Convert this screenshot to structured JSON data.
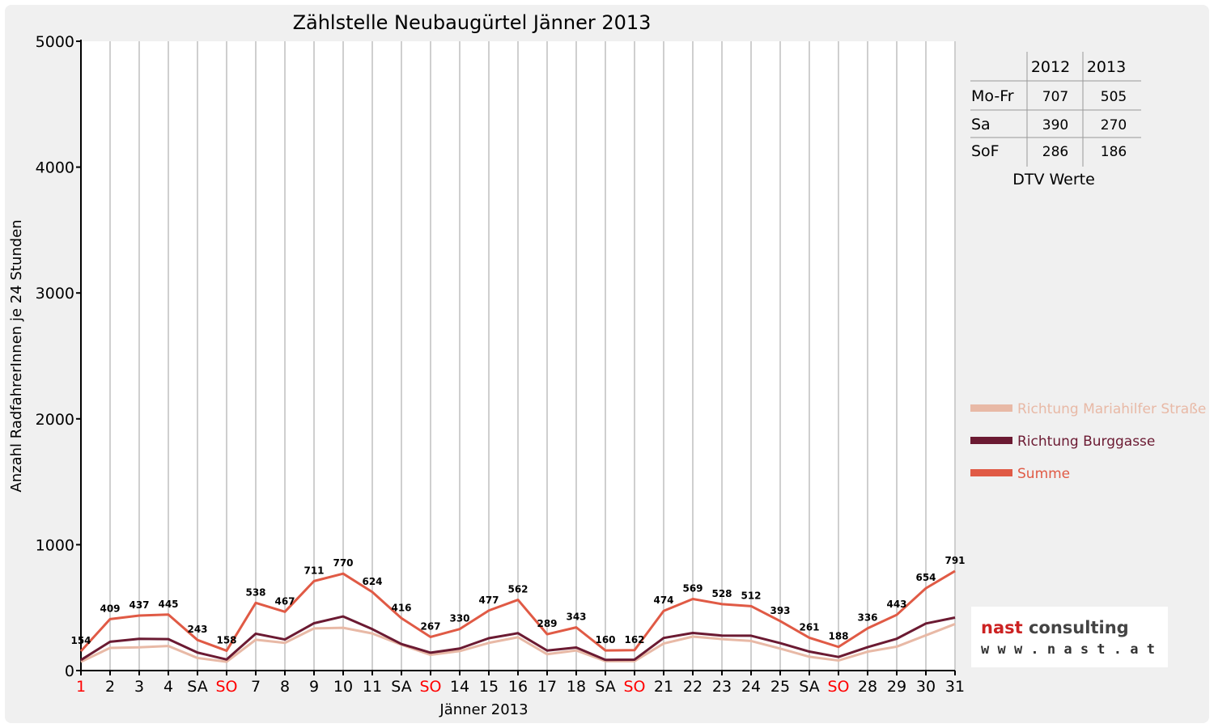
{
  "chart_data": {
    "type": "line",
    "title": "Zählstelle Neubaugürtel Jänner 2013",
    "xlabel": "Jänner 2013",
    "ylabel": "Anzahl RadfahrerInnen je 24 Stunden",
    "ylim": [
      0,
      5000
    ],
    "yticks": [
      "0",
      "1000",
      "2000",
      "3000",
      "4000",
      "5000"
    ],
    "grid": true,
    "categories": [
      "1",
      "2",
      "3",
      "4",
      "SA",
      "SO",
      "7",
      "8",
      "9",
      "10",
      "11",
      "SA",
      "SO",
      "14",
      "15",
      "16",
      "17",
      "18",
      "SA",
      "SO",
      "21",
      "22",
      "23",
      "24",
      "25",
      "SA",
      "SO",
      "28",
      "29",
      "30",
      "31"
    ],
    "red_categories": [
      0,
      5,
      12,
      19,
      26
    ],
    "series": [
      {
        "name": "Richtung Mariahilfer Straße",
        "color": "#e8b9a6",
        "values": [
          70,
          180,
          185,
          195,
          100,
          70,
          245,
          220,
          335,
          340,
          295,
          205,
          125,
          155,
          220,
          265,
          130,
          160,
          75,
          75,
          215,
          270,
          250,
          235,
          175,
          110,
          80,
          150,
          190,
          280,
          370
        ]
      },
      {
        "name": "Richtung Burggasse",
        "color": "#6b1a32",
        "values": [
          84,
          229,
          252,
          250,
          143,
          88,
          293,
          247,
          376,
          430,
          329,
          211,
          142,
          175,
          257,
          297,
          159,
          183,
          85,
          87,
          259,
          299,
          278,
          277,
          218,
          151,
          108,
          186,
          253,
          374,
          421
        ]
      },
      {
        "name": "Summe",
        "color": "#e05a45",
        "values": [
          154,
          409,
          437,
          445,
          243,
          158,
          538,
          467,
          711,
          770,
          624,
          416,
          267,
          330,
          477,
          562,
          289,
          343,
          160,
          162,
          474,
          569,
          528,
          512,
          393,
          261,
          188,
          336,
          443,
          654,
          791
        ]
      }
    ],
    "data_labels": [
      154,
      409,
      437,
      445,
      243,
      158,
      538,
      467,
      711,
      770,
      624,
      416,
      267,
      330,
      477,
      562,
      289,
      343,
      160,
      162,
      474,
      569,
      528,
      512,
      393,
      261,
      188,
      336,
      443,
      654,
      791
    ],
    "legend_placement": "right"
  },
  "dtv_table": {
    "years": [
      "2012",
      "2013"
    ],
    "rows": [
      {
        "label": "Mo-Fr",
        "v2012": "707",
        "v2013": "505"
      },
      {
        "label": "Sa",
        "v2012": "390",
        "v2013": "270"
      },
      {
        "label": "SoF",
        "v2012": "286",
        "v2013": "186"
      }
    ],
    "caption": "DTV Werte"
  },
  "logo": {
    "name_part1": "nast",
    "name_part2": " consulting",
    "url": "w w w . n a s t . a t",
    "color1": "#cc2222",
    "color2": "#444444"
  }
}
